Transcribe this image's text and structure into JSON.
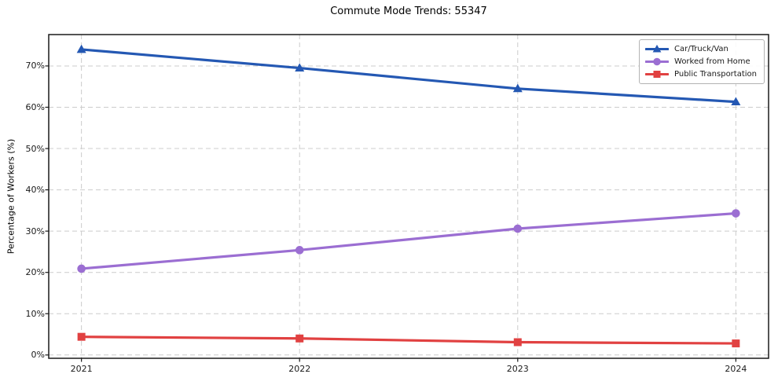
{
  "chart_data": {
    "type": "line",
    "title": "Commute Mode Trends: 55347",
    "xlabel": "",
    "ylabel": "Percentage of Workers (%)",
    "x": [
      2021,
      2022,
      2023,
      2024
    ],
    "x_tick_labels": [
      "2021",
      "2022",
      "2023",
      "2024"
    ],
    "y_ticks": [
      0,
      10,
      20,
      30,
      40,
      50,
      60,
      70
    ],
    "y_tick_labels": [
      "0%",
      "10%",
      "20%",
      "30%",
      "40%",
      "50%",
      "60%",
      "70%"
    ],
    "xlim": [
      2020.85,
      2024.15
    ],
    "ylim": [
      -0.8,
      77.6
    ],
    "grid": true,
    "grid_style": "dashed",
    "legend_position": "upper-right",
    "series": [
      {
        "name": "Car/Truck/Van",
        "color": "#2458b3",
        "marker": "triangle",
        "values": [
          74.0,
          69.5,
          64.5,
          61.3
        ]
      },
      {
        "name": "Worked from Home",
        "color": "#9b6ed2",
        "marker": "circle",
        "values": [
          20.9,
          25.4,
          30.6,
          34.3
        ]
      },
      {
        "name": "Public Transportation",
        "color": "#e14141",
        "marker": "square",
        "values": [
          4.4,
          4.0,
          3.1,
          2.8
        ]
      }
    ],
    "style": {
      "grid_color": "#cccccc",
      "spine_color": "#1a1a1a",
      "tick_color": "#1a1a1a",
      "text_color": "#000000",
      "background": "#ffffff",
      "line_width": 3.2
    }
  }
}
